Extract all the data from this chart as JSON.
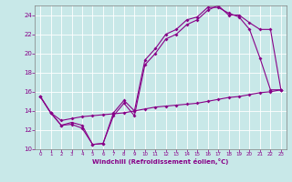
{
  "xlabel": "Windchill (Refroidissement éolien,°C)",
  "xlim": [
    -0.5,
    23.5
  ],
  "ylim": [
    10,
    25
  ],
  "yticks": [
    10,
    12,
    14,
    16,
    18,
    20,
    22,
    24
  ],
  "xticks": [
    0,
    1,
    2,
    3,
    4,
    5,
    6,
    7,
    8,
    9,
    10,
    11,
    12,
    13,
    14,
    15,
    16,
    17,
    18,
    19,
    20,
    21,
    22,
    23
  ],
  "bg_color": "#c8e8e8",
  "line_color": "#880088",
  "grid_color": "#ffffff",
  "curve1_x": [
    0,
    1,
    2,
    3,
    4,
    5,
    6,
    7,
    8,
    9,
    10,
    11,
    12,
    13,
    14,
    15,
    16,
    17,
    18,
    19,
    20,
    21,
    22,
    23
  ],
  "curve1_y": [
    15.5,
    13.8,
    12.5,
    12.6,
    12.2,
    10.5,
    10.6,
    13.8,
    15.1,
    14.0,
    19.3,
    20.5,
    22.0,
    22.5,
    23.5,
    23.8,
    24.8,
    24.8,
    24.2,
    23.8,
    22.5,
    19.5,
    16.2,
    16.2
  ],
  "curve2_x": [
    0,
    1,
    2,
    3,
    4,
    5,
    6,
    7,
    8,
    9,
    10,
    11,
    12,
    13,
    14,
    15,
    16,
    17,
    18,
    19,
    20,
    21,
    22,
    23
  ],
  "curve2_y": [
    15.5,
    13.8,
    12.5,
    12.8,
    12.5,
    10.5,
    10.6,
    13.5,
    14.8,
    13.5,
    18.8,
    20.0,
    21.5,
    22.0,
    23.0,
    23.5,
    24.5,
    25.0,
    24.0,
    24.0,
    23.2,
    22.5,
    22.5,
    16.2
  ],
  "curve3_x": [
    0,
    1,
    2,
    3,
    4,
    5,
    6,
    7,
    8,
    9,
    10,
    11,
    12,
    13,
    14,
    15,
    16,
    17,
    18,
    19,
    20,
    21,
    22,
    23
  ],
  "curve3_y": [
    15.5,
    13.8,
    13.0,
    13.2,
    13.4,
    13.5,
    13.6,
    13.7,
    13.8,
    14.0,
    14.2,
    14.4,
    14.5,
    14.6,
    14.7,
    14.8,
    15.0,
    15.2,
    15.4,
    15.5,
    15.7,
    15.9,
    16.0,
    16.2
  ]
}
